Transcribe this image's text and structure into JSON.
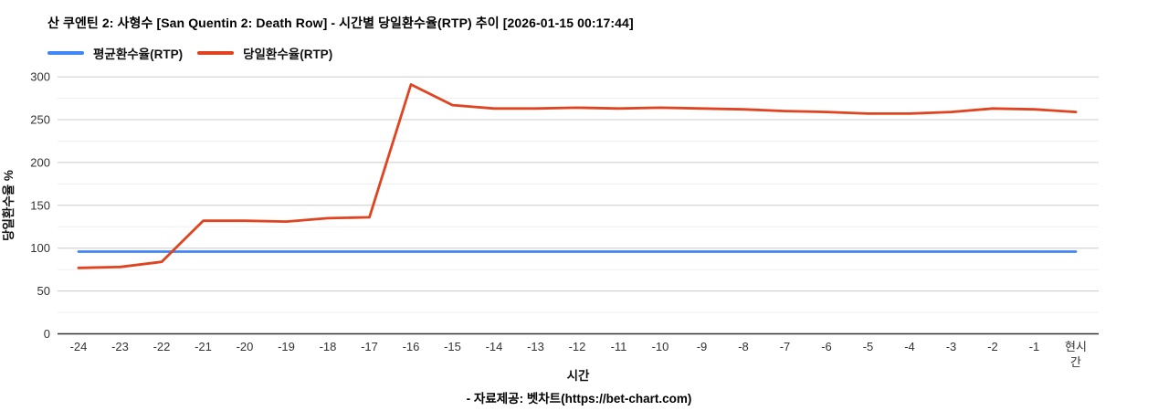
{
  "title": "산 쿠엔틴 2: 사형수 [San Quentin 2: Death Row] - 시간별 당일환수율(RTP) 추이 [2026-01-15 00:17:44]",
  "legend": [
    {
      "label": "평균환수율(RTP)",
      "color": "#4285f4"
    },
    {
      "label": "당일환수율(RTP)",
      "color": "#e0431f"
    }
  ],
  "footer": "- 자료제공: 벳차트(https://bet-chart.com)",
  "chart_data": {
    "type": "line",
    "title": "산 쿠엔틴 2: 사형수 [San Quentin 2: Death Row] - 시간별 당일환수율(RTP) 추이 [2026-01-15 00:17:44]",
    "xlabel": "시간",
    "ylabel": "당일환수율 %",
    "categories": [
      "-24",
      "-23",
      "-22",
      "-21",
      "-20",
      "-19",
      "-18",
      "-17",
      "-16",
      "-15",
      "-14",
      "-13",
      "-12",
      "-11",
      "-10",
      "-9",
      "-8",
      "-7",
      "-6",
      "-5",
      "-4",
      "-3",
      "-2",
      "-1",
      "현시간"
    ],
    "series": [
      {
        "name": "평균환수율(RTP)",
        "color": "#4285f4",
        "values": [
          96,
          96,
          96,
          96,
          96,
          96,
          96,
          96,
          96,
          96,
          96,
          96,
          96,
          96,
          96,
          96,
          96,
          96,
          96,
          96,
          96,
          96,
          96,
          96,
          96
        ]
      },
      {
        "name": "당일환수율(RTP)",
        "color": "#e0431f",
        "values": [
          77,
          78,
          84,
          132,
          132,
          131,
          135,
          136,
          291,
          267,
          263,
          263,
          264,
          263,
          264,
          263,
          262,
          260,
          259,
          257,
          257,
          259,
          263,
          262,
          259
        ]
      }
    ],
    "ylim": [
      0,
      300
    ],
    "yticks": [
      0,
      50,
      100,
      150,
      200,
      250,
      300
    ],
    "minor_yticks": [
      25,
      75,
      125,
      175,
      225,
      275
    ],
    "grid": true,
    "legend_position": "top-left"
  }
}
